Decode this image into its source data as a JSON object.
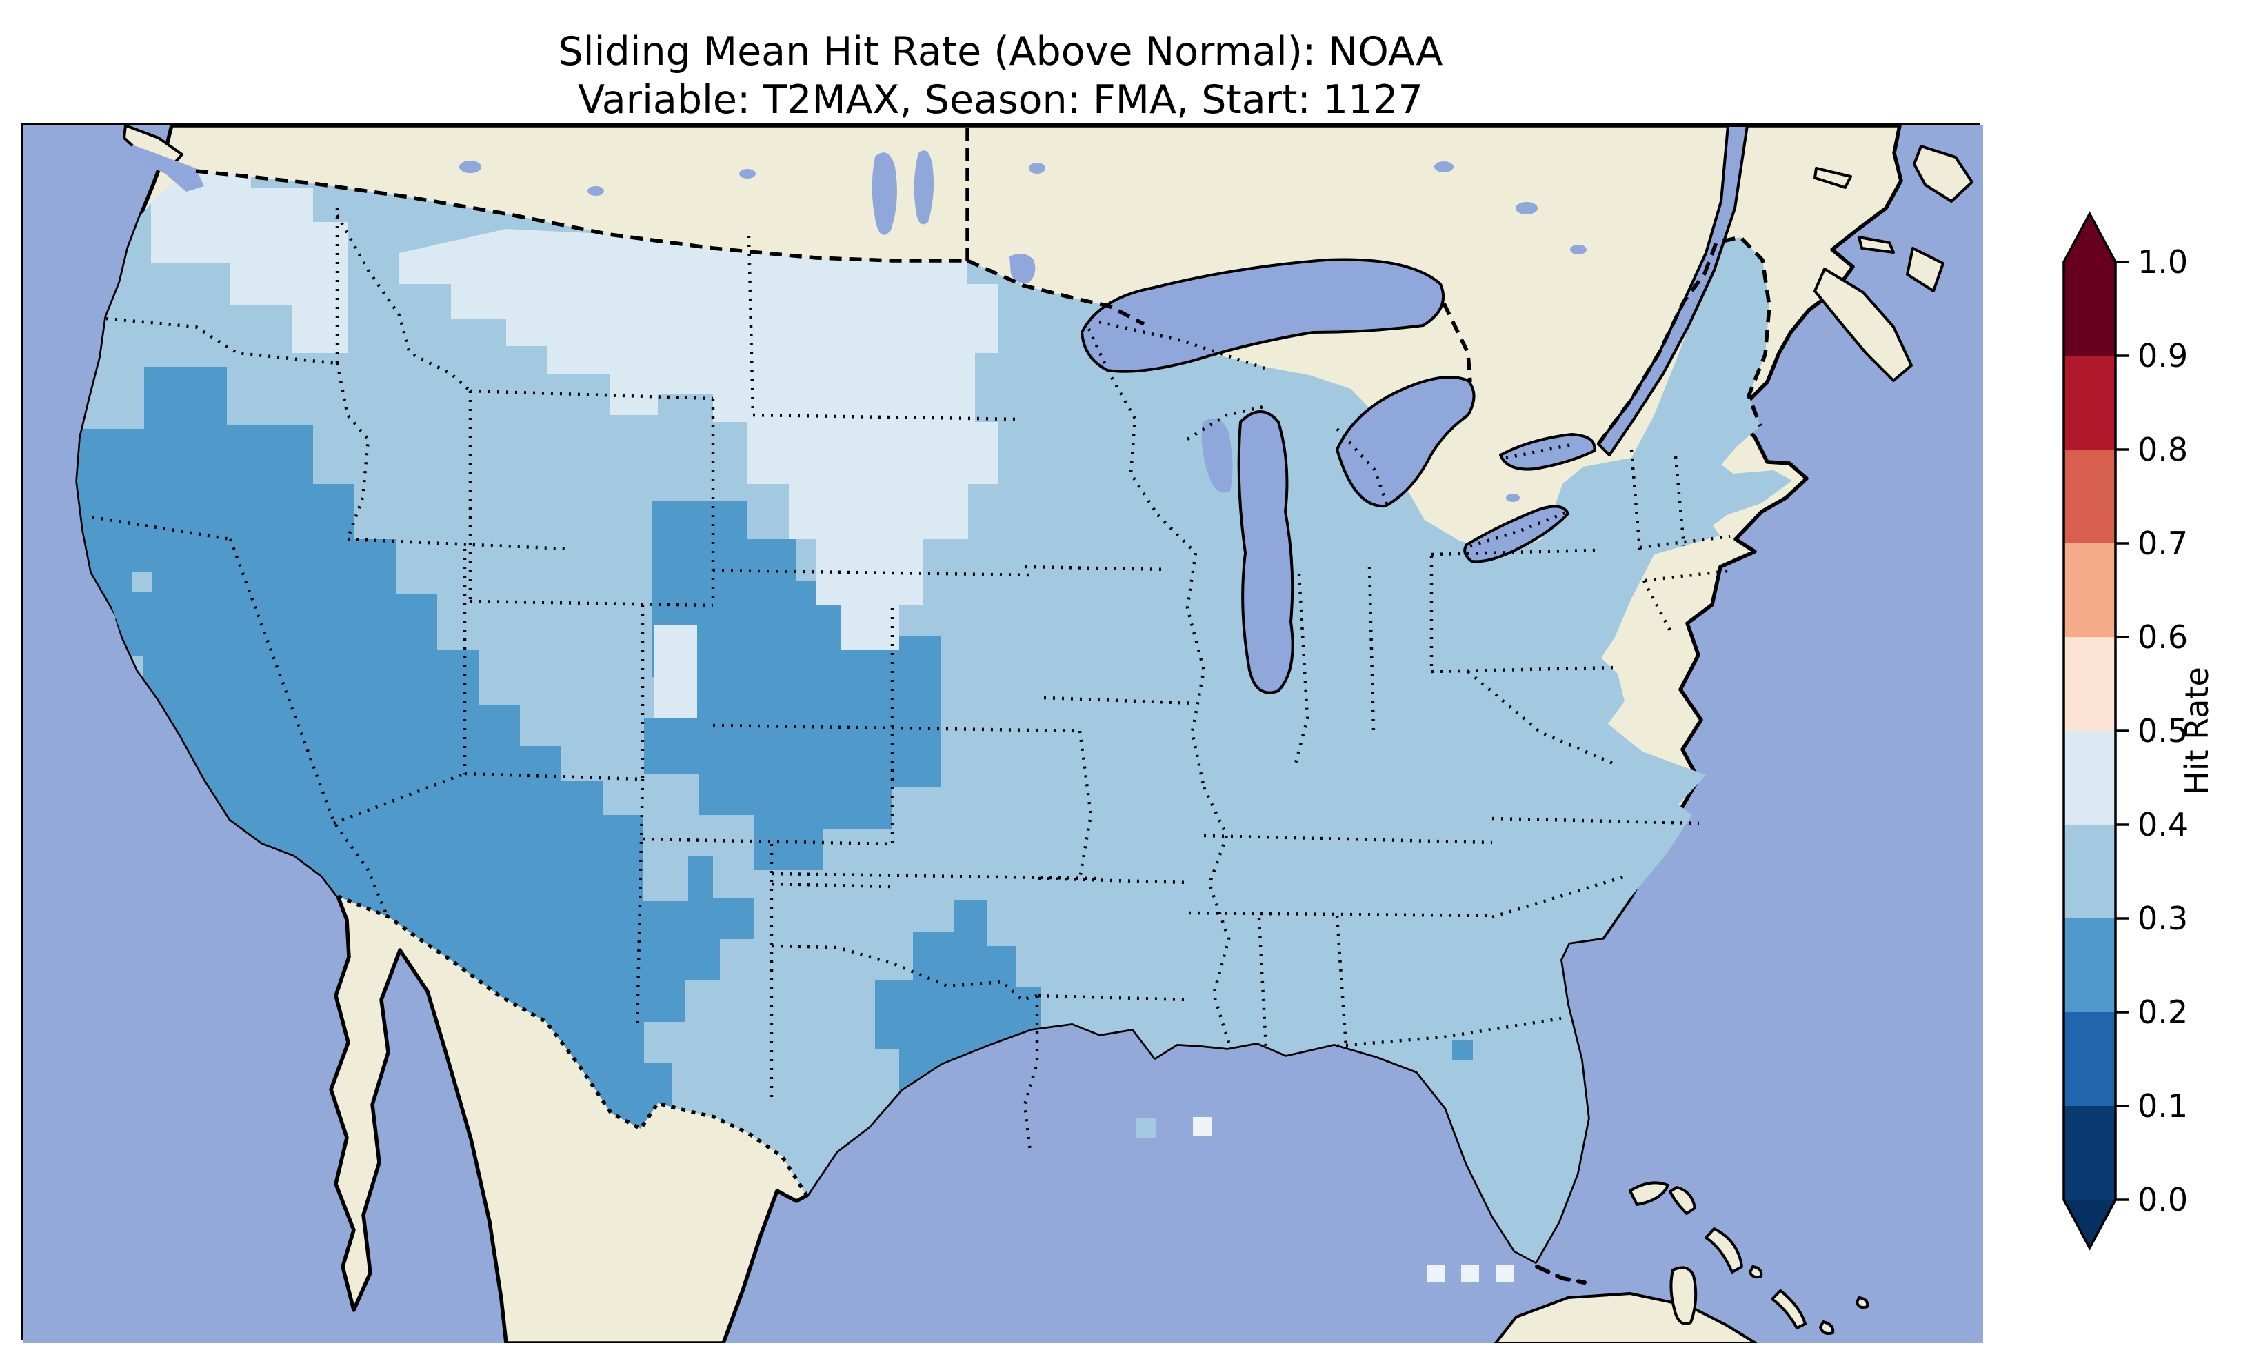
{
  "figure": {
    "title_line1": "Sliding Mean Hit Rate (Above Normal): NOAA",
    "title_line2": "Variable: T2MAX, Season: FMA, Start: 1127",
    "background_color": "#ffffff"
  },
  "map": {
    "description": "Gridded hit-rate choropleth over the continental United States on a Lambert-conformal style projection",
    "colors": {
      "ocean": "#93a9da",
      "land": "#efecd7",
      "lake": "#8fa7da",
      "coastline": "#000000",
      "frame": "#000000",
      "bin_0_1": "#0a3b70",
      "bin_1_2": "#2166ac",
      "bin_2_3": "#4f9aca",
      "bin_3_4": "#a3c9e1",
      "bin_4_5": "#dbe9f3",
      "pale_white": "#eef3f8"
    },
    "features": [
      "Pacific Ocean",
      "Atlanticic Ocean",
      "Gulf of Mexico",
      "Canada (no data, land fill)",
      "Mexico (no data, land fill)",
      "Baja California and Gulf of California",
      "Great Lakes (Superior, Michigan, Huron, Erie, Ontario)",
      "Lake of the Woods",
      "St. Lawrence River",
      "Nova Scotia",
      "Newfoundland",
      "Vancouver Island",
      "Florida peninsula with Keys",
      "Bahamas",
      "Cuba",
      "US state boundaries (dotted)",
      "US-Canada border (dashed)",
      "US-Mexico border (dotted)"
    ]
  },
  "colorbar": {
    "label": "Hit Rate",
    "orientation": "vertical",
    "extend": "both",
    "tick_labels": [
      "1.0",
      "0.9",
      "0.8",
      "0.7",
      "0.6",
      "0.5",
      "0.4",
      "0.3",
      "0.2",
      "0.1",
      "0.0"
    ],
    "bins_top_to_bottom": [
      {
        "range": "0.9-1.0",
        "color": "#67001f"
      },
      {
        "range": "0.8-0.9",
        "color": "#b2182b"
      },
      {
        "range": "0.7-0.8",
        "color": "#d6604d"
      },
      {
        "range": "0.6-0.7",
        "color": "#f5ab87"
      },
      {
        "range": "0.5-0.6",
        "color": "#fbe4d6"
      },
      {
        "range": "0.4-0.5",
        "color": "#dbe9f3"
      },
      {
        "range": "0.3-0.4",
        "color": "#a3c9e1"
      },
      {
        "range": "0.2-0.3",
        "color": "#4f9aca"
      },
      {
        "range": "0.1-0.2",
        "color": "#2166ac"
      },
      {
        "range": "0.0-0.1",
        "color": "#0a3b70"
      }
    ],
    "over_color": "#67001f",
    "under_color": "#053061"
  },
  "chart_data": {
    "type": "heatmap",
    "subtype": "geographic-choropleth",
    "title": "Sliding Mean Hit Rate (Above Normal): NOAA",
    "subtitle": "Variable: T2MAX, Season: FMA, Start: 1127",
    "source": "NOAA",
    "variable": "T2MAX",
    "season": "FMA",
    "start": "1127",
    "colorbar_label": "Hit Rate",
    "value_range": [
      0.0,
      1.0
    ],
    "bin_width": 0.1,
    "legend_position": "right",
    "observed_value_range_on_map": [
      0.2,
      0.5
    ],
    "region_values": [
      {
        "region": "Most of CONUS (Pacific NW coast, northern plains fringe, Midwest, South, East Coast, Gulf states, Florida)",
        "hit_rate_bin": "0.3-0.4"
      },
      {
        "region": "California, Nevada, Arizona, Utah, New Mexico, western Colorado, far-west Texas, southwest Oregon",
        "hit_rate_bin": "0.2-0.3"
      },
      {
        "region": "Eastern Wyoming through Nebraska panhandle into western Kansas (tongue)",
        "hit_rate_bin": "0.2-0.3"
      },
      {
        "region": "East Texas pocket crossing the Red River into SE Oklahoma",
        "hit_rate_bin": "0.2-0.3"
      },
      {
        "region": "Single grid cell near Georgia / Florida big-bend",
        "hit_rate_bin": "0.2-0.3"
      },
      {
        "region": "Northern Montana band, the Dakotas, Minnesota, Iowa, eastern Nebraska",
        "hit_rate_bin": "0.4-0.5"
      },
      {
        "region": "Puget Sound and eastern Washington / north Idaho pockets",
        "hit_rate_bin": "0.4-0.5"
      },
      {
        "region": "Small central-Rockies (Utah/Colorado mountains) carve-outs",
        "hit_rate_bin": "0.3-0.5"
      },
      {
        "region": "Scattered coastal cells (south Louisiana, Florida Keys)",
        "hit_rate_bin": "0.4-0.5"
      }
    ]
  }
}
